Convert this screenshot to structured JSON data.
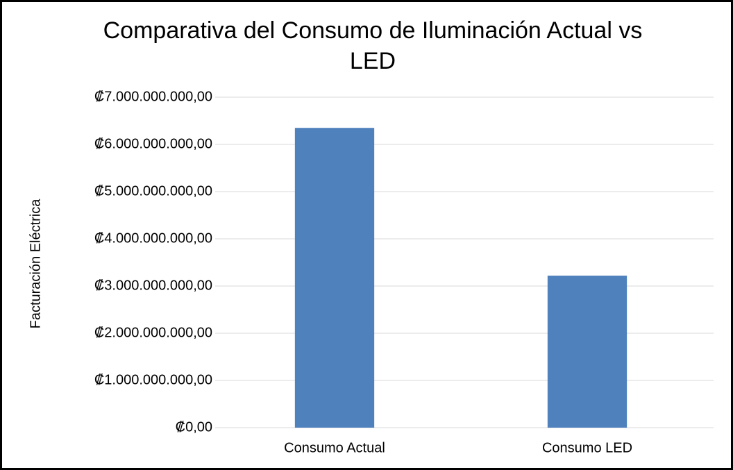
{
  "chart_data": {
    "type": "bar",
    "title": "Comparativa del Consumo de Iluminación Actual vs LED",
    "y_label": "Facturación Eléctrica",
    "categories": [
      "Consumo Actual",
      "Consumo LED"
    ],
    "values": [
      6350000000,
      3220000000
    ],
    "color": "#4f81bd",
    "ylim": [
      0,
      7000000000
    ],
    "yticks": [
      {
        "value": 0,
        "label": "₡0,00"
      },
      {
        "value": 1000000000,
        "label": "₡1.000.000.000,00"
      },
      {
        "value": 2000000000,
        "label": "₡2.000.000.000,00"
      },
      {
        "value": 3000000000,
        "label": "₡3.000.000.000,00"
      },
      {
        "value": 4000000000,
        "label": "₡4.000.000.000,00"
      },
      {
        "value": 5000000000,
        "label": "₡5.000.000.000,00"
      },
      {
        "value": 6000000000,
        "label": "₡6.000.000.000,00"
      },
      {
        "value": 7000000000,
        "label": "₡7.000.000.000,00"
      }
    ],
    "grid": true
  }
}
